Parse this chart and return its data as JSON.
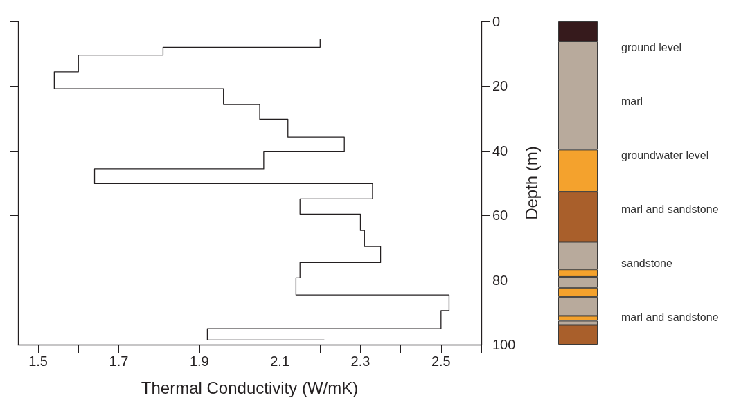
{
  "chart_data": [
    {
      "type": "line",
      "xlabel": "Thermal Conductivity (W/mK)",
      "ylabel": "Depth (m)",
      "xlim": [
        1.45,
        2.6
      ],
      "xticks": [
        1.5,
        {
          "value": 1.6,
          "label": null
        },
        1.7,
        {
          "value": 1.8,
          "label": null
        },
        1.9,
        {
          "value": 2.0,
          "label": null
        },
        2.1,
        {
          "value": 2.2,
          "label": null
        },
        2.3,
        {
          "value": 2.4,
          "label": null
        },
        2.5,
        {
          "value": 2.6,
          "label": null
        }
      ],
      "ylim": [
        100,
        0
      ],
      "yticks": [
        0,
        20,
        40,
        60,
        80,
        100
      ],
      "marker": "none",
      "line_style": "solid",
      "series": [
        {
          "color": "#231f20",
          "x": [
            2.2,
            2.2,
            1.81,
            1.81,
            1.6,
            1.6,
            1.54,
            1.54,
            1.96,
            1.96,
            2.05,
            2.05,
            2.12,
            2.12,
            2.26,
            2.26,
            2.06,
            2.06,
            1.64,
            1.64,
            2.33,
            2.33,
            2.15,
            2.15,
            2.3,
            2.3,
            2.31,
            2.31,
            2.35,
            2.35,
            2.15,
            2.15,
            2.14,
            2.14,
            2.52,
            2.52,
            2.5,
            2.5,
            1.92,
            1.92,
            2.21
          ],
          "values": [
            5.6,
            8.0,
            8.0,
            10.4,
            10.4,
            15.6,
            15.6,
            20.8,
            20.8,
            25.7,
            25.7,
            30.3,
            30.3,
            35.8,
            35.8,
            40.2,
            40.2,
            45.6,
            45.6,
            50.2,
            50.2,
            54.9,
            54.9,
            59.6,
            59.6,
            64.7,
            64.7,
            69.6,
            69.6,
            74.6,
            74.6,
            79.3,
            79.3,
            84.6,
            84.6,
            89.5,
            89.5,
            95.1,
            95.1,
            98.6,
            98.6
          ]
        }
      ]
    },
    {
      "type": "bar",
      "stacked": true,
      "categories": [
        null
      ],
      "ylim": [
        100,
        0
      ],
      "yticks": [
        0,
        20,
        40,
        60,
        80,
        100
      ],
      "tick_labels": false,
      "series": [
        {
          "color": "#361a1c",
          "values": [
            6.2
          ]
        },
        {
          "color": "#b8aa9c",
          "values": [
            33.5
          ]
        },
        {
          "color": "#f4a22d",
          "values": [
            13.0
          ]
        },
        {
          "color": "#a95f2b",
          "values": [
            15.5
          ]
        },
        {
          "color": "#b8aa9c",
          "values": [
            8.5
          ]
        },
        {
          "color": "#f4a22d",
          "values": [
            2.3
          ]
        },
        {
          "color": "#b8aa9c",
          "values": [
            3.4
          ]
        },
        {
          "color": "#f4a22d",
          "values": [
            2.8
          ]
        },
        {
          "color": "#b8aa9c",
          "values": [
            5.9
          ]
        },
        {
          "color": "#f4a22d",
          "values": [
            1.5
          ]
        },
        {
          "color": "#b8aa9c",
          "values": [
            1.3
          ]
        },
        {
          "color": "#a95f2b",
          "values": [
            6.1
          ]
        }
      ],
      "annotations": [
        "ground level",
        "marl",
        "groundwater level",
        "marl and sandstone",
        "sandstone",
        "marl and sandstone"
      ]
    }
  ]
}
